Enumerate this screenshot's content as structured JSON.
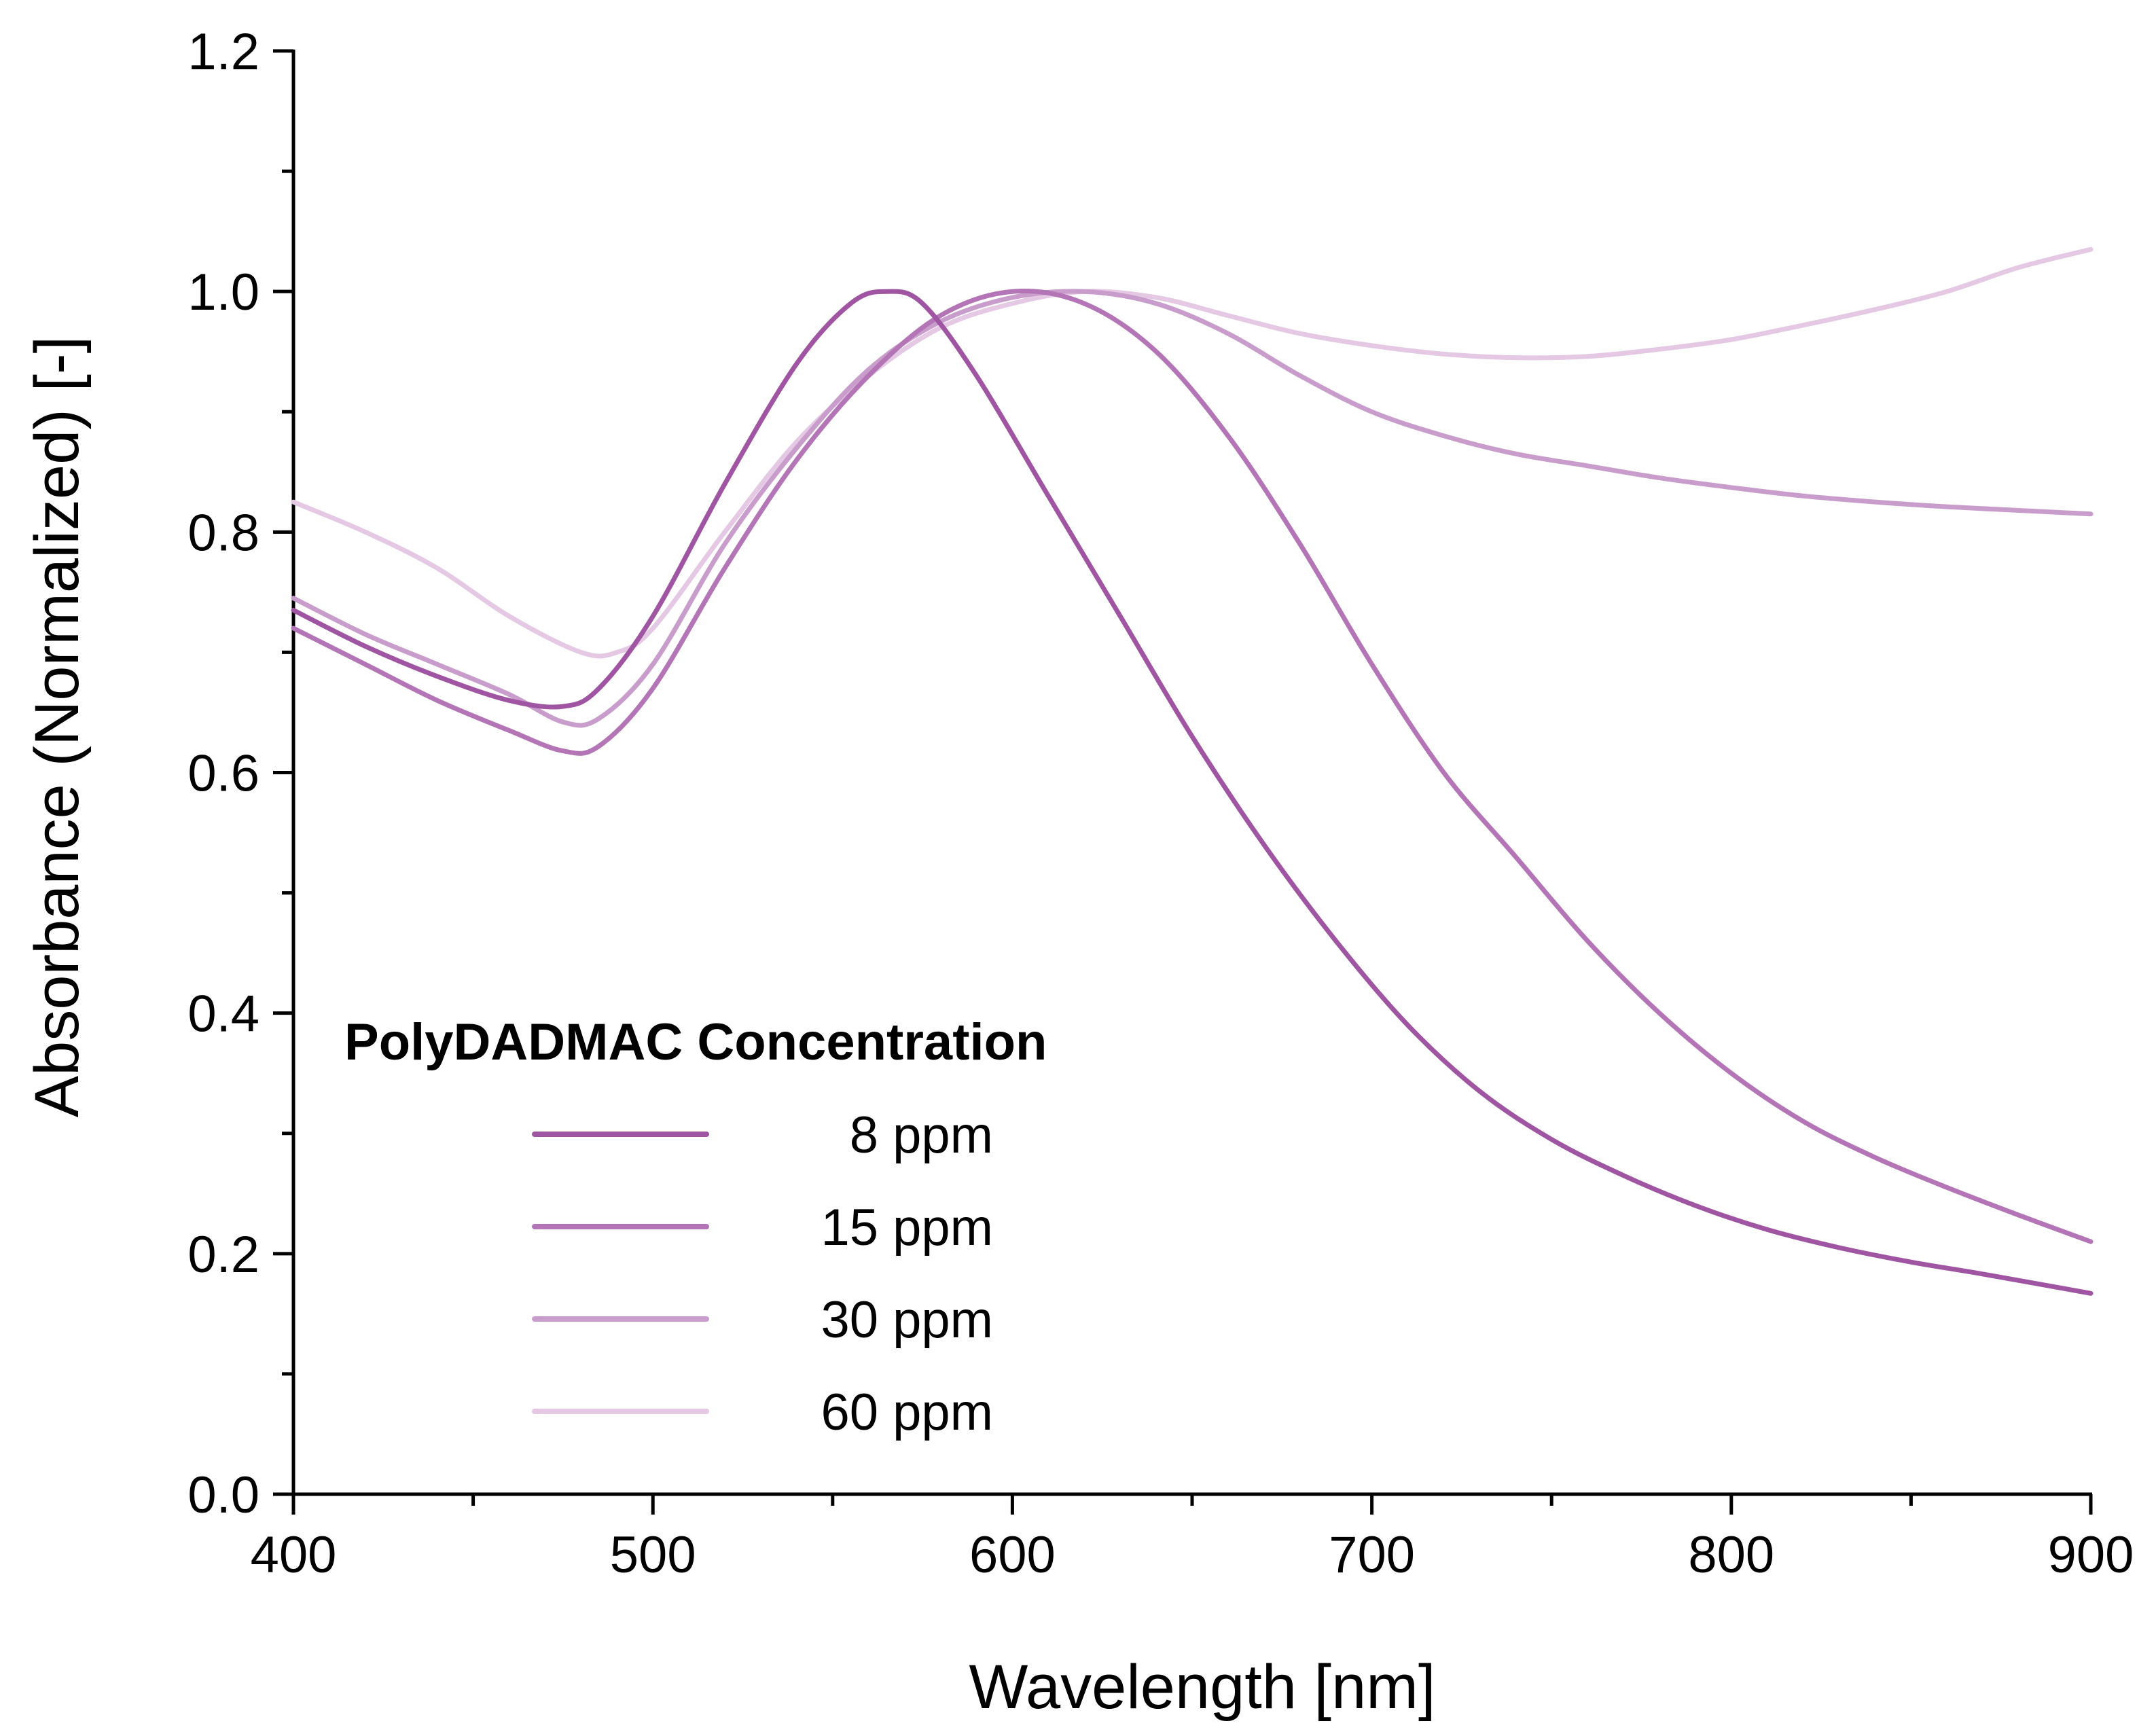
{
  "chart_data": {
    "type": "line",
    "title": "",
    "xlabel": "Wavelength [nm]",
    "ylabel": "Absorbance (Normalized) [-]",
    "xlim": [
      400,
      900
    ],
    "ylim": [
      0.0,
      1.2
    ],
    "x_ticks": [
      "400",
      "500",
      "600",
      "700",
      "800",
      "900"
    ],
    "y_ticks": [
      "0.0",
      "0.2",
      "0.4",
      "0.6",
      "0.8",
      "1.0",
      "1.2"
    ],
    "grid": false,
    "legend": {
      "title": "PolyDADMAC Concentration",
      "position": "lower-left"
    },
    "series": [
      {
        "name": "8 ppm",
        "color": "#a055a3",
        "x": [
          400,
          420,
          440,
          460,
          475,
          485,
          500,
          520,
          540,
          555,
          565,
          575,
          590,
          610,
          630,
          650,
          670,
          690,
          710,
          730,
          750,
          770,
          790,
          810,
          830,
          850,
          870,
          900
        ],
        "y": [
          0.735,
          0.705,
          0.68,
          0.66,
          0.655,
          0.67,
          0.73,
          0.84,
          0.94,
          0.99,
          1.0,
          0.99,
          0.93,
          0.83,
          0.73,
          0.63,
          0.54,
          0.46,
          0.39,
          0.335,
          0.295,
          0.265,
          0.24,
          0.22,
          0.205,
          0.193,
          0.183,
          0.167
        ]
      },
      {
        "name": "15 ppm",
        "color": "#b475b6",
        "x": [
          400,
          420,
          440,
          460,
          475,
          485,
          500,
          520,
          540,
          560,
          580,
          600,
          620,
          640,
          660,
          680,
          700,
          720,
          740,
          760,
          780,
          800,
          820,
          840,
          860,
          880,
          900
        ],
        "y": [
          0.72,
          0.69,
          0.66,
          0.635,
          0.618,
          0.622,
          0.67,
          0.77,
          0.86,
          0.93,
          0.98,
          1.0,
          0.99,
          0.95,
          0.88,
          0.79,
          0.69,
          0.6,
          0.53,
          0.46,
          0.4,
          0.35,
          0.31,
          0.28,
          0.255,
          0.232,
          0.21
        ]
      },
      {
        "name": "30 ppm",
        "color": "#c99dcb",
        "x": [
          400,
          420,
          440,
          460,
          475,
          485,
          500,
          520,
          540,
          560,
          580,
          600,
          620,
          640,
          660,
          680,
          700,
          720,
          740,
          760,
          780,
          800,
          820,
          840,
          860,
          880,
          900
        ],
        "y": [
          0.745,
          0.715,
          0.69,
          0.665,
          0.642,
          0.645,
          0.69,
          0.79,
          0.87,
          0.935,
          0.975,
          0.995,
          1.0,
          0.99,
          0.965,
          0.93,
          0.9,
          0.88,
          0.865,
          0.855,
          0.845,
          0.837,
          0.83,
          0.825,
          0.821,
          0.818,
          0.815
        ]
      },
      {
        "name": "60 ppm",
        "color": "#e4c8e4",
        "x": [
          400,
          420,
          440,
          460,
          480,
          490,
          500,
          520,
          540,
          560,
          580,
          600,
          620,
          640,
          660,
          680,
          700,
          720,
          740,
          760,
          780,
          800,
          820,
          840,
          860,
          880,
          900
        ],
        "y": [
          0.825,
          0.8,
          0.77,
          0.73,
          0.7,
          0.7,
          0.72,
          0.8,
          0.875,
          0.93,
          0.97,
          0.99,
          1.0,
          0.995,
          0.98,
          0.965,
          0.955,
          0.948,
          0.945,
          0.946,
          0.952,
          0.96,
          0.972,
          0.985,
          1.0,
          1.02,
          1.035
        ]
      }
    ]
  }
}
